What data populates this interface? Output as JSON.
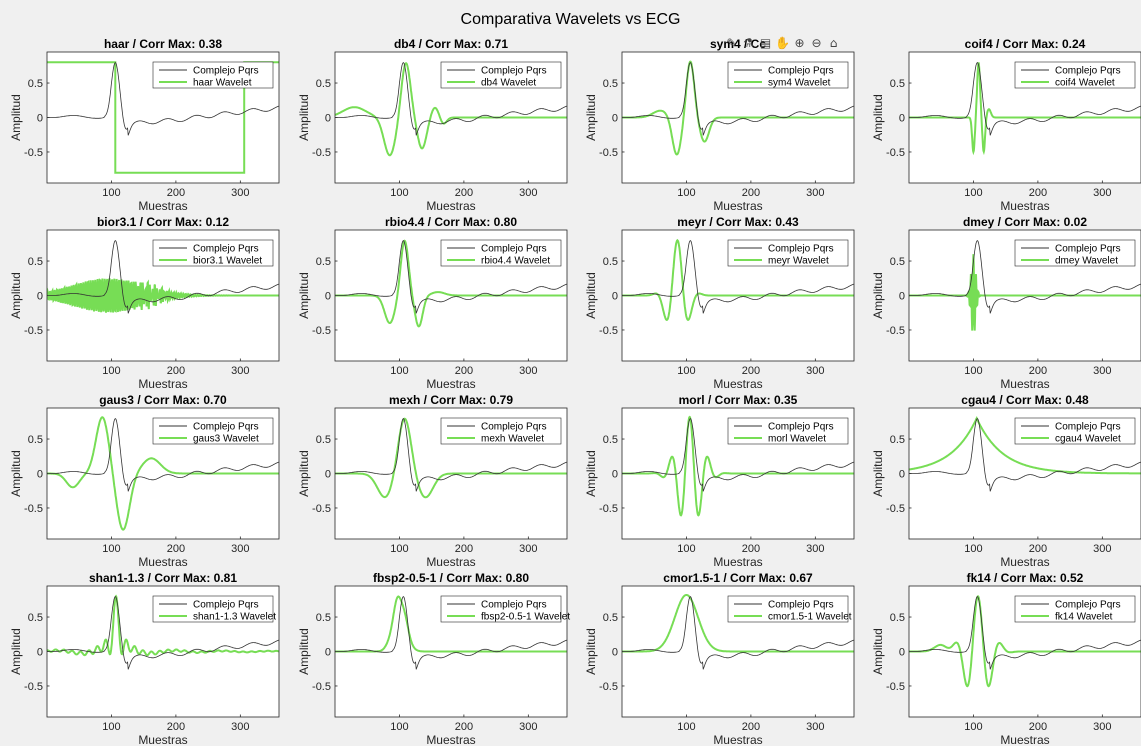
{
  "figure": {
    "title": "Comparativa Wavelets vs ECG",
    "toolbar": [
      {
        "name": "brush-icon",
        "glyph": "✎"
      },
      {
        "name": "data-tips-icon",
        "glyph": "⚗"
      },
      {
        "name": "export-icon",
        "glyph": "▤"
      },
      {
        "name": "pan-icon",
        "glyph": "✋"
      },
      {
        "name": "zoom-in-icon",
        "glyph": "⊕"
      },
      {
        "name": "zoom-out-icon",
        "glyph": "⊖"
      },
      {
        "name": "home-icon",
        "glyph": "⌂"
      }
    ],
    "colors": {
      "ecg": "#333333",
      "wavelet": "#77dd55",
      "axes": "#ffffff",
      "background": "#f0f0f0"
    }
  },
  "chart_data": [
    {
      "type": "line",
      "wavelet": "haar",
      "title": "haar / Corr Max: 0.38",
      "xlabel": "Muestras",
      "ylabel": "Amplitud",
      "xlim": [
        0,
        360
      ],
      "ylim": [
        -0.95,
        0.95
      ],
      "xticks": [
        100,
        200,
        300
      ],
      "yticks": [
        0.5,
        0,
        -0.5
      ],
      "ytick_labels": [
        "0.5",
        "0",
        "-0.5"
      ],
      "series": [
        {
          "name": "Complejo Pqrs",
          "color": "#333333",
          "values": "ecg"
        },
        {
          "name": "haar Wavelet",
          "color": "#77dd55",
          "shape": "haar"
        }
      ],
      "legend": "top-right"
    },
    {
      "type": "line",
      "wavelet": "db4",
      "title": "db4 / Corr Max: 0.71",
      "xlabel": "Muestras",
      "ylabel": "Amplitud",
      "xlim": [
        0,
        360
      ],
      "ylim": [
        -0.95,
        0.95
      ],
      "xticks": [
        100,
        200,
        300
      ],
      "yticks": [
        0.5,
        0,
        -0.5
      ],
      "ytick_labels": [
        "0.5",
        "0",
        "-0.5"
      ],
      "series": [
        {
          "name": "Complejo Pqrs",
          "color": "#333333",
          "values": "ecg"
        },
        {
          "name": "db4 Wavelet",
          "color": "#77dd55",
          "shape": "db4"
        }
      ],
      "legend": "top-right"
    },
    {
      "type": "line",
      "wavelet": "sym4",
      "title": "sym4 / Corr Max: 0.91",
      "title_visible": "sym4 / Cc",
      "xlabel": "Muestras",
      "ylabel": "Amplitud",
      "xlim": [
        0,
        360
      ],
      "ylim": [
        -0.95,
        0.95
      ],
      "xticks": [
        100,
        200,
        300
      ],
      "yticks": [
        0.5,
        0,
        -0.5
      ],
      "ytick_labels": [
        "0.5",
        "0",
        "-0.5"
      ],
      "series": [
        {
          "name": "Complejo Pqrs",
          "color": "#333333",
          "values": "ecg"
        },
        {
          "name": "sym4 Wavelet",
          "color": "#77dd55",
          "shape": "sym4"
        }
      ],
      "legend": "top-right"
    },
    {
      "type": "line",
      "wavelet": "coif4",
      "title": "coif4 / Corr Max: 0.24",
      "xlabel": "Muestras",
      "ylabel": "Amplitud",
      "xlim": [
        0,
        360
      ],
      "ylim": [
        -0.95,
        0.95
      ],
      "xticks": [
        100,
        200,
        300
      ],
      "yticks": [
        0.5,
        0,
        -0.5
      ],
      "ytick_labels": [
        "0.5",
        "0",
        "-0.5"
      ],
      "series": [
        {
          "name": "Complejo Pqrs",
          "color": "#333333",
          "values": "ecg"
        },
        {
          "name": "coif4 Wavelet",
          "color": "#77dd55",
          "shape": "coif4"
        }
      ],
      "legend": "top-right"
    },
    {
      "type": "line",
      "wavelet": "bior3.1",
      "title": "bior3.1 / Corr Max: 0.12",
      "xlabel": "Muestras",
      "ylabel": "Amplitud",
      "xlim": [
        0,
        360
      ],
      "ylim": [
        -0.95,
        0.95
      ],
      "xticks": [
        100,
        200,
        300
      ],
      "yticks": [
        0.5,
        0,
        -0.5
      ],
      "ytick_labels": [
        "0.5",
        "0",
        "-0.5"
      ],
      "series": [
        {
          "name": "Complejo Pqrs",
          "color": "#333333",
          "values": "ecg"
        },
        {
          "name": "bior3.1 Wavelet",
          "color": "#77dd55",
          "shape": "bior31"
        }
      ],
      "legend": "top-right"
    },
    {
      "type": "line",
      "wavelet": "rbio4.4",
      "title": "rbio4.4 / Corr Max: 0.80",
      "xlabel": "Muestras",
      "ylabel": "Amplitud",
      "xlim": [
        0,
        360
      ],
      "ylim": [
        -0.95,
        0.95
      ],
      "xticks": [
        100,
        200,
        300
      ],
      "yticks": [
        0.5,
        0,
        -0.5
      ],
      "ytick_labels": [
        "0.5",
        "0",
        "-0.5"
      ],
      "series": [
        {
          "name": "Complejo Pqrs",
          "color": "#333333",
          "values": "ecg"
        },
        {
          "name": "rbio4.4 Wavelet",
          "color": "#77dd55",
          "shape": "rbio44"
        }
      ],
      "legend": "top-right"
    },
    {
      "type": "line",
      "wavelet": "meyr",
      "title": "meyr / Corr Max: 0.43",
      "xlabel": "Muestras",
      "ylabel": "Amplitud",
      "xlim": [
        0,
        360
      ],
      "ylim": [
        -0.95,
        0.95
      ],
      "xticks": [
        100,
        200,
        300
      ],
      "yticks": [
        0.5,
        0,
        -0.5
      ],
      "ytick_labels": [
        "0.5",
        "0",
        "-0.5"
      ],
      "series": [
        {
          "name": "Complejo Pqrs",
          "color": "#333333",
          "values": "ecg"
        },
        {
          "name": "meyr Wavelet",
          "color": "#77dd55",
          "shape": "meyr"
        }
      ],
      "legend": "top-right"
    },
    {
      "type": "line",
      "wavelet": "dmey",
      "title": "dmey / Corr Max: 0.02",
      "xlabel": "Muestras",
      "ylabel": "Amplitud",
      "xlim": [
        0,
        360
      ],
      "ylim": [
        -0.95,
        0.95
      ],
      "xticks": [
        100,
        200,
        300
      ],
      "yticks": [
        0.5,
        0,
        -0.5
      ],
      "ytick_labels": [
        "0.5",
        "0",
        "-0.5"
      ],
      "series": [
        {
          "name": "Complejo Pqrs",
          "color": "#333333",
          "values": "ecg"
        },
        {
          "name": "dmey Wavelet",
          "color": "#77dd55",
          "shape": "dmey"
        }
      ],
      "legend": "top-right"
    },
    {
      "type": "line",
      "wavelet": "gaus3",
      "title": "gaus3 / Corr Max: 0.70",
      "xlabel": "Muestras",
      "ylabel": "Amplitud",
      "xlim": [
        0,
        360
      ],
      "ylim": [
        -0.95,
        0.95
      ],
      "xticks": [
        100,
        200,
        300
      ],
      "yticks": [
        0.5,
        0,
        -0.5
      ],
      "ytick_labels": [
        "0.5",
        "0",
        "-0.5"
      ],
      "series": [
        {
          "name": "Complejo Pqrs",
          "color": "#333333",
          "values": "ecg"
        },
        {
          "name": "gaus3 Wavelet",
          "color": "#77dd55",
          "shape": "gaus3"
        }
      ],
      "legend": "top-right"
    },
    {
      "type": "line",
      "wavelet": "mexh",
      "title": "mexh / Corr Max: 0.79",
      "xlabel": "Muestras",
      "ylabel": "Amplitud",
      "xlim": [
        0,
        360
      ],
      "ylim": [
        -0.95,
        0.95
      ],
      "xticks": [
        100,
        200,
        300
      ],
      "yticks": [
        0.5,
        0,
        -0.5
      ],
      "ytick_labels": [
        "0.5",
        "0",
        "-0.5"
      ],
      "series": [
        {
          "name": "Complejo Pqrs",
          "color": "#333333",
          "values": "ecg"
        },
        {
          "name": "mexh Wavelet",
          "color": "#77dd55",
          "shape": "mexh"
        }
      ],
      "legend": "top-right"
    },
    {
      "type": "line",
      "wavelet": "morl",
      "title": "morl / Corr Max: 0.35",
      "xlabel": "Muestras",
      "ylabel": "Amplitud",
      "xlim": [
        0,
        360
      ],
      "ylim": [
        -0.95,
        0.95
      ],
      "xticks": [
        100,
        200,
        300
      ],
      "yticks": [
        0.5,
        0,
        -0.5
      ],
      "ytick_labels": [
        "0.5",
        "0",
        "-0.5"
      ],
      "series": [
        {
          "name": "Complejo Pqrs",
          "color": "#333333",
          "values": "ecg"
        },
        {
          "name": "morl Wavelet",
          "color": "#77dd55",
          "shape": "morl"
        }
      ],
      "legend": "top-right"
    },
    {
      "type": "line",
      "wavelet": "cgau4",
      "title": "cgau4 / Corr Max: 0.48",
      "xlabel": "Muestras",
      "ylabel": "Amplitud",
      "xlim": [
        0,
        360
      ],
      "ylim": [
        -0.95,
        0.95
      ],
      "xticks": [
        100,
        200,
        300
      ],
      "yticks": [
        0.5,
        0,
        -0.5
      ],
      "ytick_labels": [
        "0.5",
        "0",
        "-0.5"
      ],
      "series": [
        {
          "name": "Complejo Pqrs",
          "color": "#333333",
          "values": "ecg"
        },
        {
          "name": "cgau4 Wavelet",
          "color": "#77dd55",
          "shape": "cgau4"
        }
      ],
      "legend": "top-right"
    },
    {
      "type": "line",
      "wavelet": "shan1-1.3",
      "title": "shan1-1.3 / Corr Max: 0.81",
      "xlabel": "Muestras",
      "ylabel": "Amplitud",
      "xlim": [
        0,
        360
      ],
      "ylim": [
        -0.95,
        0.95
      ],
      "xticks": [
        100,
        200,
        300
      ],
      "yticks": [
        0.5,
        0,
        -0.5
      ],
      "ytick_labels": [
        "0.5",
        "0",
        "-0.5"
      ],
      "series": [
        {
          "name": "Complejo Pqrs",
          "color": "#333333",
          "values": "ecg"
        },
        {
          "name": "shan1-1.3 Wavelet",
          "color": "#77dd55",
          "shape": "shan"
        }
      ],
      "legend": "top-right"
    },
    {
      "type": "line",
      "wavelet": "fbsp2-0.5-1",
      "title": "fbsp2-0.5-1 / Corr Max: 0.80",
      "xlabel": "Muestras",
      "ylabel": "Amplitud",
      "xlim": [
        0,
        360
      ],
      "ylim": [
        -0.95,
        0.95
      ],
      "xticks": [
        100,
        200,
        300
      ],
      "yticks": [
        0.5,
        0,
        -0.5
      ],
      "ytick_labels": [
        "0.5",
        "0",
        "-0.5"
      ],
      "series": [
        {
          "name": "Complejo Pqrs",
          "color": "#333333",
          "values": "ecg"
        },
        {
          "name": "fbsp2-0.5-1 Wavelet",
          "color": "#77dd55",
          "shape": "fbsp"
        }
      ],
      "legend": "top-right"
    },
    {
      "type": "line",
      "wavelet": "cmor1.5-1",
      "title": "cmor1.5-1 / Corr Max: 0.67",
      "xlabel": "Muestras",
      "ylabel": "Amplitud",
      "xlim": [
        0,
        360
      ],
      "ylim": [
        -0.95,
        0.95
      ],
      "xticks": [
        100,
        200,
        300
      ],
      "yticks": [
        0.5,
        0,
        -0.5
      ],
      "ytick_labels": [
        "0.5",
        "0",
        "-0.5"
      ],
      "series": [
        {
          "name": "Complejo Pqrs",
          "color": "#333333",
          "values": "ecg"
        },
        {
          "name": "cmor1.5-1 Wavelet",
          "color": "#77dd55",
          "shape": "cmor"
        }
      ],
      "legend": "top-right"
    },
    {
      "type": "line",
      "wavelet": "fk14",
      "title": "fk14 / Corr Max: 0.52",
      "xlabel": "Muestras",
      "ylabel": "Amplitud",
      "xlim": [
        0,
        360
      ],
      "ylim": [
        -0.95,
        0.95
      ],
      "xticks": [
        100,
        200,
        300
      ],
      "yticks": [
        0.5,
        0,
        -0.5
      ],
      "ytick_labels": [
        "0.5",
        "0",
        "-0.5"
      ],
      "series": [
        {
          "name": "Complejo Pqrs",
          "color": "#333333",
          "values": "ecg"
        },
        {
          "name": "fk14 Wavelet",
          "color": "#77dd55",
          "shape": "fk14"
        }
      ],
      "legend": "top-right"
    }
  ]
}
